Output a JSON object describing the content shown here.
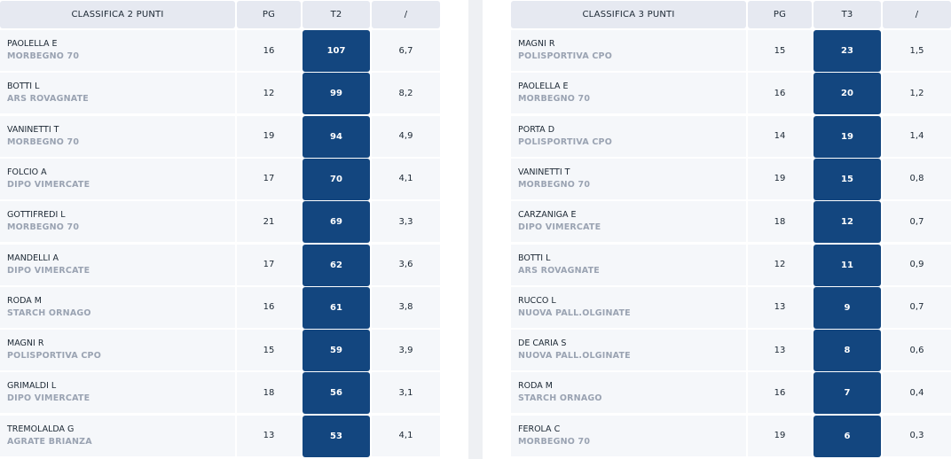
{
  "left": {
    "headers": [
      "CLASSIFICA 2 PUNTI",
      "PG",
      "T2",
      "/"
    ],
    "rows": [
      {
        "player": "PAOLELLA E",
        "team": "MORBEGNO 70",
        "pg": "16",
        "value": "107",
        "ratio": "6,7"
      },
      {
        "player": "BOTTI L",
        "team": "ARS ROVAGNATE",
        "pg": "12",
        "value": "99",
        "ratio": "8,2"
      },
      {
        "player": "VANINETTI T",
        "team": "MORBEGNO 70",
        "pg": "19",
        "value": "94",
        "ratio": "4,9"
      },
      {
        "player": "FOLCIO A",
        "team": "DIPO VIMERCATE",
        "pg": "17",
        "value": "70",
        "ratio": "4,1"
      },
      {
        "player": "GOTTIFREDI L",
        "team": "MORBEGNO 70",
        "pg": "21",
        "value": "69",
        "ratio": "3,3"
      },
      {
        "player": "MANDELLI A",
        "team": "DIPO VIMERCATE",
        "pg": "17",
        "value": "62",
        "ratio": "3,6"
      },
      {
        "player": "RODA M",
        "team": "STARCH ORNAGO",
        "pg": "16",
        "value": "61",
        "ratio": "3,8"
      },
      {
        "player": "MAGNI R",
        "team": "POLISPORTIVA CPO",
        "pg": "15",
        "value": "59",
        "ratio": "3,9"
      },
      {
        "player": "GRIMALDI L",
        "team": "DIPO VIMERCATE",
        "pg": "18",
        "value": "56",
        "ratio": "3,1"
      },
      {
        "player": "TREMOLALDA G",
        "team": "AGRATE BRIANZA",
        "pg": "13",
        "value": "53",
        "ratio": "4,1"
      }
    ]
  },
  "right": {
    "headers": [
      "CLASSIFICA 3 PUNTI",
      "PG",
      "T3",
      "/"
    ],
    "rows": [
      {
        "player": "MAGNI R",
        "team": "POLISPORTIVA CPO",
        "pg": "15",
        "value": "23",
        "ratio": "1,5"
      },
      {
        "player": "PAOLELLA E",
        "team": "MORBEGNO 70",
        "pg": "16",
        "value": "20",
        "ratio": "1,2"
      },
      {
        "player": "PORTA D",
        "team": "POLISPORTIVA CPO",
        "pg": "14",
        "value": "19",
        "ratio": "1,4"
      },
      {
        "player": "VANINETTI T",
        "team": "MORBEGNO 70",
        "pg": "19",
        "value": "15",
        "ratio": "0,8"
      },
      {
        "player": "CARZANIGA E",
        "team": "DIPO VIMERCATE",
        "pg": "18",
        "value": "12",
        "ratio": "0,7"
      },
      {
        "player": "BOTTI L",
        "team": "ARS ROVAGNATE",
        "pg": "12",
        "value": "11",
        "ratio": "0,9"
      },
      {
        "player": "RUCCO L",
        "team": "NUOVA PALL.OLGINATE",
        "pg": "13",
        "value": "9",
        "ratio": "0,7"
      },
      {
        "player": "DE CARIA S",
        "team": "NUOVA PALL.OLGINATE",
        "pg": "13",
        "value": "8",
        "ratio": "0,6"
      },
      {
        "player": "RODA M",
        "team": "STARCH ORNAGO",
        "pg": "16",
        "value": "7",
        "ratio": "0,4"
      },
      {
        "player": "FEROLA C",
        "team": "MORBEGNO 70",
        "pg": "19",
        "value": "6",
        "ratio": "0,3"
      }
    ]
  },
  "colors": {
    "highlight": "#13467f",
    "header_bg": "#e6e9f1",
    "row_bg": "#f5f7fa",
    "team_text": "#9aa3b2"
  }
}
